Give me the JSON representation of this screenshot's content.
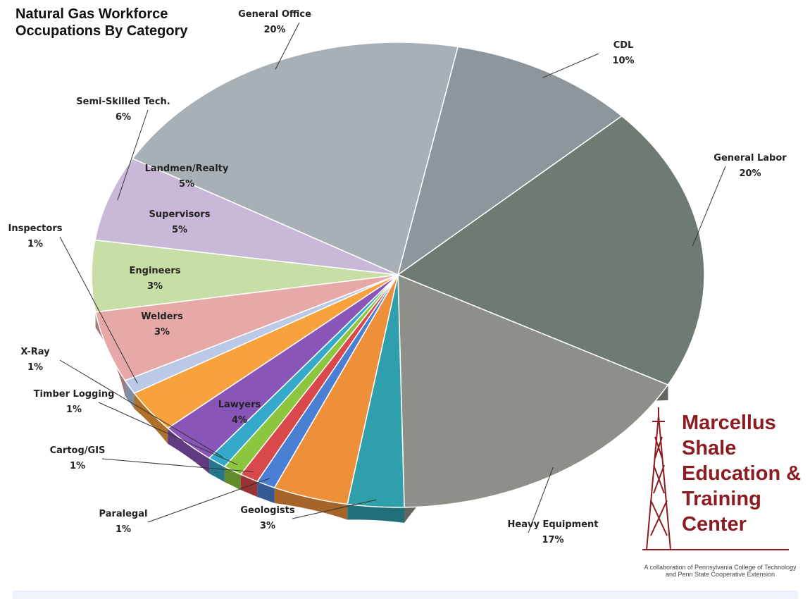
{
  "chart_data": {
    "type": "pie",
    "title": "Natural Gas Workforce Occupations By Category",
    "categories": [
      "General Office",
      "CDL",
      "General Labor",
      "Heavy Equipment",
      "Geologists",
      "Lawyers",
      "Paralegal",
      "Cartog/GIS",
      "Timber Logging",
      "X-Ray",
      "Welders",
      "Engineers",
      "Inspectors",
      "Supervisors",
      "Landmen/Realty",
      "Semi-Skilled Tech."
    ],
    "values": [
      20,
      10,
      20,
      17,
      3,
      4,
      1,
      1,
      1,
      1,
      3,
      3,
      1,
      5,
      5,
      6
    ],
    "value_labels": [
      "20%",
      "10%",
      "20%",
      "17%",
      "3%",
      "4%",
      "1%",
      "1%",
      "1%",
      "1%",
      "3%",
      "3%",
      "1%",
      "5%",
      "5%",
      "6%"
    ],
    "colors": [
      "#a9b0b5",
      "#8e969c",
      "#6e7a72",
      "#8d9088",
      "#2f9fac",
      "#ee8f3a",
      "#4a7fd4",
      "#d9484a",
      "#8cc63f",
      "#35a9c9",
      "#8a55b8",
      "#f7a23c",
      "#b9c9e6",
      "#e7a9a8",
      "#c7dfa6",
      "#c8b9d9"
    ]
  },
  "logo": {
    "lines": [
      "Marcellus",
      "Shale",
      "Education &",
      "Training",
      "Center"
    ],
    "caption": "A collaboration of Pennsylvania College of Technology and Penn State Cooperative Extension"
  }
}
